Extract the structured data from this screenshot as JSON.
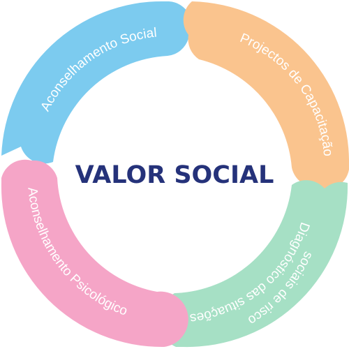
{
  "center": {
    "title": "VALOR SOCIAL",
    "color": "#25327a"
  },
  "segments": [
    {
      "name": "segment-aconselhamento-social",
      "label": "Aconselhamento Social",
      "color": "#7ccbef"
    },
    {
      "name": "segment-projectos-de-capacitacao",
      "label": "Projectos de Capacitação",
      "color": "#fac48e"
    },
    {
      "name": "segment-diagnostico",
      "label_lines": [
        "Diagnóstico das situações",
        "sociais de risco"
      ],
      "color": "#a6e0c5"
    },
    {
      "name": "segment-aconselhamento-psicologico",
      "label": "Aconselhamento Psicológico",
      "color": "#f5a5c7"
    }
  ]
}
